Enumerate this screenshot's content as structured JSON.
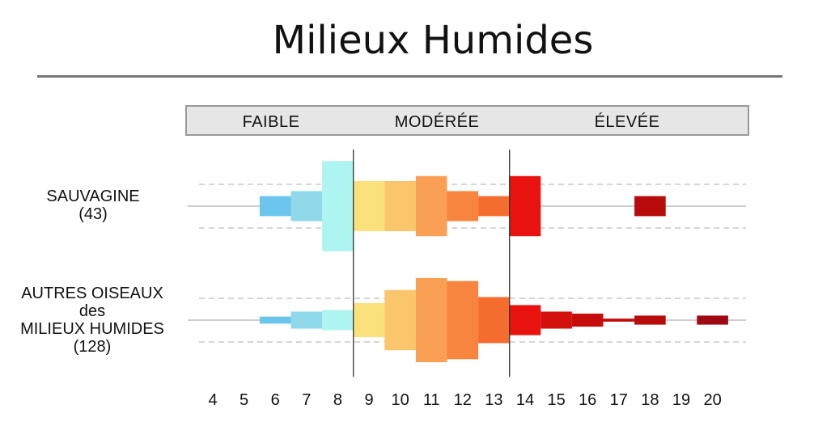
{
  "chart_data": {
    "type": "heatmap",
    "title": "Milieux Humides",
    "categories_bands": [
      {
        "label": "FAIBLE",
        "from": 4,
        "to": 8
      },
      {
        "label": "MODÉRÉE",
        "from": 9,
        "to": 13
      },
      {
        "label": "ÉLEVÉE",
        "from": 14,
        "to": 20
      }
    ],
    "x_ticks": [
      "4",
      "5",
      "6",
      "7",
      "8",
      "9",
      "10",
      "11",
      "12",
      "13",
      "14",
      "15",
      "16",
      "17",
      "18",
      "19",
      "20"
    ],
    "xlim": [
      4,
      20
    ],
    "dividers": [
      8.5,
      13.5
    ],
    "colors": {
      "6": "#6cc5ec",
      "7": "#8fd9ea",
      "8": "#aef4f1",
      "9": "#fbe17c",
      "10": "#fbc56b",
      "11": "#f9a055",
      "12": "#f8853f",
      "13": "#f56d2e",
      "14": "#e8130f",
      "15": "#d3100c",
      "16": "#c60d0b",
      "17": "#c00b0b",
      "18": "#b80b0b",
      "19": "#a8090d",
      "20": "#9e0812"
    },
    "series": [
      {
        "name": "SAUVAGINE",
        "label_lines": [
          "SAUVAGINE",
          "(43)"
        ],
        "values": {
          "6": 2,
          "7": 3,
          "8": 9,
          "9": 5,
          "10": 5,
          "11": 6,
          "12": 3,
          "13": 2,
          "14": 6,
          "18": 2
        }
      },
      {
        "name": "AUTRES OISEAUX des MILIEUX HUMIDES",
        "label_lines": [
          "AUTRES OISEAUX",
          "des",
          "MILIEUX HUMIDES",
          "(128)"
        ],
        "values": {
          "6": 0.7,
          "7": 1.7,
          "8": 2,
          "9": 3.4,
          "10": 6,
          "11": 8.4,
          "12": 7.8,
          "13": 4.6,
          "14": 3,
          "15": 1.7,
          "16": 1.3,
          "17": 0.3,
          "18": 0.9,
          "20": 0.9
        }
      }
    ]
  }
}
